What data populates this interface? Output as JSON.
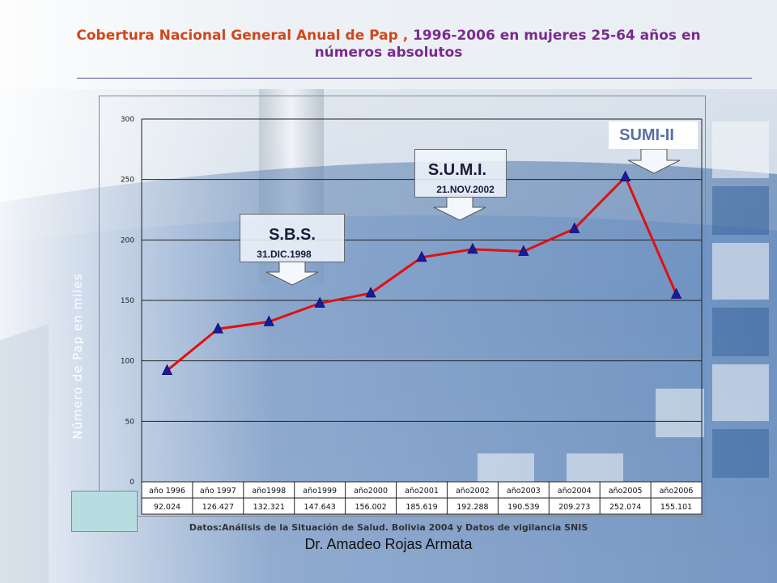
{
  "title": {
    "part1": "Cobertura  Nacional General Anual de Pap ,",
    "part2": " 1996-2006 en mujeres 25-64 años en",
    "line2": "números absolutos"
  },
  "colors": {
    "line": "#e01010",
    "marker": "#1a1aa0",
    "title_orange": "#d2461a",
    "title_purple": "#7a2a8e"
  },
  "chart_data": {
    "type": "line",
    "ylabel": "Número de Pap en miles",
    "ylim": [
      0,
      300
    ],
    "yticks": [
      0,
      50,
      100,
      150,
      200,
      250,
      300
    ],
    "grid": true,
    "categories": [
      "año 1996",
      "año 1997",
      "año1998",
      "año1999",
      "año2000",
      "año2001",
      "año2002",
      "año2003",
      "año2004",
      "año2005",
      "año2006"
    ],
    "series": [
      {
        "values": [
          92.024,
          126.427,
          132.321,
          147.643,
          156.002,
          185.619,
          192.288,
          190.539,
          209.273,
          252.074,
          155.101
        ]
      }
    ],
    "table_values": [
      "92.024",
      "126.427",
      "132.321",
      "147.643",
      "156.002",
      "185.619",
      "192.288",
      "190.539",
      "209.273",
      "252.074",
      "155.101"
    ]
  },
  "annotations": {
    "sbs": {
      "title": "S.B.S.",
      "date": "31.DIC.1998"
    },
    "sumi": {
      "title": "S.U.M.I.",
      "date": "21.NOV.2002"
    },
    "sumi2": {
      "title": "SUMI-II"
    }
  },
  "source": "Datos:Análisis de la Situación de Salud. Bolivia 2004 y Datos de vigilancia SNIS",
  "author": "Dr. Amadeo Rojas Armata"
}
